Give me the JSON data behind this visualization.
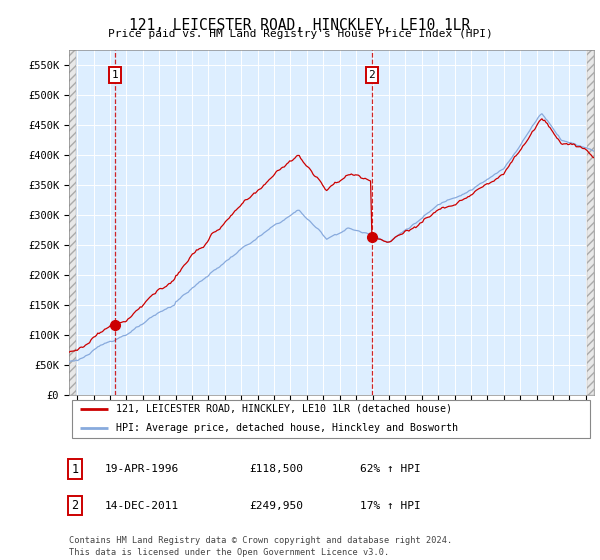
{
  "title": "121, LEICESTER ROAD, HINCKLEY, LE10 1LR",
  "subtitle": "Price paid vs. HM Land Registry's House Price Index (HPI)",
  "legend_line1": "121, LEICESTER ROAD, HINCKLEY, LE10 1LR (detached house)",
  "legend_line2": "HPI: Average price, detached house, Hinckley and Bosworth",
  "annotation1_label": "1",
  "annotation1_date": "19-APR-1996",
  "annotation1_price": "£118,500",
  "annotation1_hpi": "62% ↑ HPI",
  "annotation2_label": "2",
  "annotation2_date": "14-DEC-2011",
  "annotation2_price": "£249,950",
  "annotation2_hpi": "17% ↑ HPI",
  "footnote": "Contains HM Land Registry data © Crown copyright and database right 2024.\nThis data is licensed under the Open Government Licence v3.0.",
  "hpi_line_color": "#88aadd",
  "price_line_color": "#cc0000",
  "background_color": "#ddeeff",
  "ylim": [
    0,
    575000
  ],
  "yticks": [
    0,
    50000,
    100000,
    150000,
    200000,
    250000,
    300000,
    350000,
    400000,
    450000,
    500000,
    550000
  ],
  "ytick_labels": [
    "£0",
    "£50K",
    "£100K",
    "£150K",
    "£200K",
    "£250K",
    "£300K",
    "£350K",
    "£400K",
    "£450K",
    "£500K",
    "£550K"
  ],
  "purchase1_year": 1996.3,
  "purchase1_value": 118500,
  "purchase2_year": 2011.95,
  "purchase2_value": 249950,
  "xmin": 1993.5,
  "xmax": 2025.5
}
